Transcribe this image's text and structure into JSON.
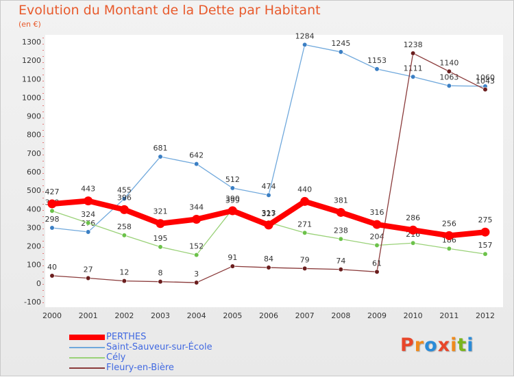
{
  "page": {
    "title": "Evolution du Montant de la Dette par Habitant",
    "subtitle": "(en €)"
  },
  "brand": {
    "name": "Proxiti",
    "letter_colors": [
      "#e8462a",
      "#f08a1c",
      "#2a8bd8",
      "#e8462a",
      "#f08a1c",
      "#7ab51d",
      "#2a8bd8"
    ]
  },
  "chart_data": {
    "type": "line",
    "title": "Evolution du Montant de la Dette par Habitant",
    "subtitle": "(en €)",
    "xlabel": "",
    "ylabel": "",
    "x": [
      "2000",
      "2001",
      "2002",
      "2003",
      "2004",
      "2005",
      "2006",
      "2007",
      "2008",
      "2009",
      "2010",
      "2011",
      "2012"
    ],
    "y_ticks": [
      -100,
      0,
      100,
      200,
      300,
      400,
      500,
      600,
      700,
      800,
      900,
      1000,
      1100,
      1200,
      1300
    ],
    "ylim": [
      -100,
      1300
    ],
    "grid": false,
    "legend": "bottom-left",
    "series": [
      {
        "name": "Saint-Sauveur-sur-École",
        "color": "#6fa8dc",
        "marker": "#3b7fc4",
        "values": [
          298,
          276,
          455,
          681,
          642,
          512,
          474,
          1284,
          1245,
          1153,
          1111,
          1063,
          1060
        ],
        "labels": [
          "298",
          "276",
          "455",
          "681",
          "642",
          "512",
          "474",
          "1284",
          "1245",
          "1153",
          "1111",
          "1063",
          "1060"
        ]
      },
      {
        "name": "Cély",
        "color": "#99d177",
        "marker": "#6cc24a",
        "values": [
          389,
          324,
          258,
          195,
          152,
          399,
          327,
          271,
          238,
          204,
          216,
          186,
          157
        ],
        "labels": [
          "389",
          "324",
          "258",
          "195",
          "152",
          "399",
          "327",
          "271",
          "238",
          "204",
          "216",
          "186",
          "157"
        ]
      },
      {
        "name": "Fleury-en-Bière",
        "color": "#8a3a3a",
        "marker": "#6b1e1e",
        "values": [
          40,
          27,
          12,
          8,
          3,
          91,
          84,
          79,
          74,
          61,
          1238,
          1140,
          1043
        ],
        "labels": [
          "40",
          "27",
          "12",
          "8",
          "3",
          "91",
          "84",
          "79",
          "74",
          "61",
          "1238",
          "1140",
          "1043"
        ]
      },
      {
        "name": "PERTHES",
        "color": "#ff0000",
        "marker": "#ff0000",
        "values": [
          427,
          443,
          396,
          321,
          344,
          390,
          313,
          440,
          381,
          316,
          286,
          256,
          275
        ],
        "labels": [
          "427",
          "443",
          "396",
          "321",
          "344",
          "390",
          "313",
          "440",
          "381",
          "316",
          "286",
          "256",
          "275"
        ]
      }
    ],
    "legend_order": [
      "PERTHES",
      "Saint-Sauveur-sur-École",
      "Cély",
      "Fleury-en-Bière"
    ]
  }
}
